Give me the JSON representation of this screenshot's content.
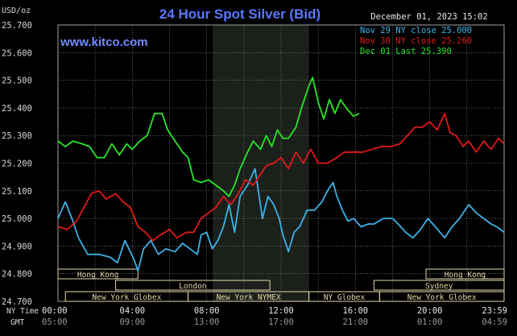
{
  "header": {
    "unit": "USD/oz",
    "title": "24 Hour Spot Silver (Bid)",
    "timestamp": "December 01, 2023 15:02",
    "brand": "www.kitco.com"
  },
  "colors": {
    "background": "#000000",
    "grid": "#a0a0a0",
    "text": "#d8d8d8",
    "title": "#5a78ff",
    "brand": "#6f8cff",
    "nov29": "#3bb3e8",
    "nov30": "#e11919",
    "dec01": "#28e628",
    "session_fill": "#1b201b",
    "market_box": "#e4d6a8"
  },
  "legend": [
    {
      "label": "Nov 29 NY close 25.000",
      "color_key": "nov29"
    },
    {
      "label": "Nov 30 NY close 25.260",
      "color_key": "nov30"
    },
    {
      "label": "Dec 01 Last 25.390",
      "color_key": "dec01"
    }
  ],
  "markets": [
    {
      "name": "Hong Kong",
      "row": 0
    },
    {
      "name": "London",
      "row": 1
    },
    {
      "name": "New York Globex",
      "row": 2
    },
    {
      "name": "New York NYMEX",
      "row": 2
    },
    {
      "name": "NY Globex",
      "row": 2
    },
    {
      "name": "Hong Kong",
      "row": 0
    },
    {
      "name": "Sydney",
      "row": 1
    },
    {
      "name": "New York Globex",
      "row": 2
    }
  ],
  "time_axis": {
    "row1_label": "NY Time",
    "row2_label": "GMT",
    "ny_ticks": [
      "00:00",
      "04:00",
      "08:00",
      "12:00",
      "16:00",
      "20:00",
      "23:59"
    ],
    "gmt_ticks": [
      "05:00",
      "09:00",
      "13:00",
      "17:00",
      "21:00",
      "01:00",
      "04:59"
    ]
  },
  "chart_data": {
    "type": "line",
    "title": "24 Hour Spot Silver (Bid)",
    "ylabel": "USD/oz",
    "ylim": [
      24.7,
      25.7
    ],
    "xlim": [
      0,
      24
    ],
    "x_unit": "hours (NY Time)",
    "y_ticks": [
      "24.700",
      "24.800",
      "24.900",
      "25.000",
      "25.100",
      "25.200",
      "25.300",
      "25.400",
      "25.500",
      "25.600",
      "25.700"
    ],
    "grid": true,
    "series": [
      {
        "name": "Nov 29 NY close 25.000",
        "color_key": "nov29",
        "points": [
          [
            0,
            25.0
          ],
          [
            0.4,
            25.06
          ],
          [
            0.8,
            24.99
          ],
          [
            1.1,
            24.93
          ],
          [
            1.6,
            24.87
          ],
          [
            2.2,
            24.87
          ],
          [
            2.8,
            24.86
          ],
          [
            3.2,
            24.84
          ],
          [
            3.6,
            24.92
          ],
          [
            4.1,
            24.85
          ],
          [
            4.3,
            24.81
          ],
          [
            4.6,
            24.89
          ],
          [
            5.0,
            24.92
          ],
          [
            5.4,
            24.87
          ],
          [
            5.8,
            24.89
          ],
          [
            6.3,
            24.88
          ],
          [
            6.7,
            24.91
          ],
          [
            7.1,
            24.89
          ],
          [
            7.5,
            24.87
          ],
          [
            7.7,
            24.94
          ],
          [
            8.0,
            24.95
          ],
          [
            8.3,
            24.89
          ],
          [
            8.6,
            24.92
          ],
          [
            8.9,
            24.97
          ],
          [
            9.2,
            25.05
          ],
          [
            9.5,
            24.95
          ],
          [
            9.8,
            25.08
          ],
          [
            10.2,
            25.12
          ],
          [
            10.6,
            25.18
          ],
          [
            11.0,
            25.0
          ],
          [
            11.3,
            25.08
          ],
          [
            11.6,
            25.05
          ],
          [
            11.9,
            25.0
          ],
          [
            12.1,
            24.94
          ],
          [
            12.4,
            24.88
          ],
          [
            12.7,
            24.95
          ],
          [
            13.0,
            24.97
          ],
          [
            13.4,
            25.03
          ],
          [
            13.8,
            25.03
          ],
          [
            14.2,
            25.06
          ],
          [
            14.5,
            25.1
          ],
          [
            14.8,
            25.13
          ],
          [
            15.0,
            25.08
          ],
          [
            15.3,
            25.03
          ],
          [
            15.6,
            24.99
          ],
          [
            15.9,
            25.0
          ],
          [
            16.3,
            24.97
          ],
          [
            16.7,
            24.98
          ],
          [
            17.0,
            24.98
          ],
          [
            17.5,
            25.0
          ],
          [
            18.0,
            25.0
          ],
          [
            18.3,
            24.98
          ],
          [
            18.7,
            24.95
          ],
          [
            19.1,
            24.93
          ],
          [
            19.5,
            24.96
          ],
          [
            19.9,
            25.0
          ],
          [
            20.3,
            24.97
          ],
          [
            20.8,
            24.93
          ],
          [
            21.2,
            24.97
          ],
          [
            21.6,
            25.0
          ],
          [
            22.1,
            25.05
          ],
          [
            22.5,
            25.02
          ],
          [
            22.9,
            25.0
          ],
          [
            23.3,
            24.98
          ],
          [
            23.6,
            24.97
          ],
          [
            24.0,
            24.95
          ]
        ]
      },
      {
        "name": "Nov 30 NY close 25.260",
        "color_key": "nov30",
        "points": [
          [
            0,
            24.97
          ],
          [
            0.5,
            24.96
          ],
          [
            1.0,
            24.99
          ],
          [
            1.4,
            25.04
          ],
          [
            1.8,
            25.09
          ],
          [
            2.2,
            25.1
          ],
          [
            2.6,
            25.07
          ],
          [
            3.1,
            25.09
          ],
          [
            3.5,
            25.06
          ],
          [
            3.9,
            25.04
          ],
          [
            4.3,
            24.97
          ],
          [
            4.7,
            24.95
          ],
          [
            5.1,
            24.92
          ],
          [
            5.5,
            24.94
          ],
          [
            6.0,
            24.96
          ],
          [
            6.4,
            24.93
          ],
          [
            6.9,
            24.95
          ],
          [
            7.3,
            24.95
          ],
          [
            7.7,
            25.0
          ],
          [
            8.1,
            25.02
          ],
          [
            8.5,
            25.04
          ],
          [
            8.9,
            25.08
          ],
          [
            9.3,
            25.05
          ],
          [
            9.7,
            25.09
          ],
          [
            10.1,
            25.14
          ],
          [
            10.5,
            25.12
          ],
          [
            10.8,
            25.15
          ],
          [
            11.2,
            25.19
          ],
          [
            11.6,
            25.2
          ],
          [
            12.0,
            25.22
          ],
          [
            12.4,
            25.18
          ],
          [
            12.8,
            25.24
          ],
          [
            13.2,
            25.2
          ],
          [
            13.6,
            25.25
          ],
          [
            14.0,
            25.2
          ],
          [
            14.5,
            25.2
          ],
          [
            15.0,
            25.22
          ],
          [
            15.4,
            25.24
          ],
          [
            15.9,
            25.24
          ],
          [
            16.4,
            25.24
          ],
          [
            16.9,
            25.25
          ],
          [
            17.4,
            25.26
          ],
          [
            17.9,
            25.26
          ],
          [
            18.4,
            25.27
          ],
          [
            18.8,
            25.3
          ],
          [
            19.2,
            25.33
          ],
          [
            19.6,
            25.33
          ],
          [
            20.0,
            25.35
          ],
          [
            20.4,
            25.32
          ],
          [
            20.8,
            25.38
          ],
          [
            21.1,
            25.31
          ],
          [
            21.4,
            25.3
          ],
          [
            21.8,
            25.26
          ],
          [
            22.1,
            25.28
          ],
          [
            22.5,
            25.24
          ],
          [
            22.9,
            25.28
          ],
          [
            23.3,
            25.25
          ],
          [
            23.7,
            25.29
          ],
          [
            24.0,
            25.27
          ]
        ]
      },
      {
        "name": "Dec 01 Last 25.390",
        "color_key": "dec01",
        "points": [
          [
            0,
            25.28
          ],
          [
            0.4,
            25.26
          ],
          [
            0.8,
            25.28
          ],
          [
            1.3,
            25.27
          ],
          [
            1.7,
            25.26
          ],
          [
            2.1,
            25.22
          ],
          [
            2.5,
            25.22
          ],
          [
            2.9,
            25.27
          ],
          [
            3.3,
            25.23
          ],
          [
            3.7,
            25.27
          ],
          [
            4.0,
            25.25
          ],
          [
            4.4,
            25.28
          ],
          [
            4.8,
            25.3
          ],
          [
            5.2,
            25.38
          ],
          [
            5.6,
            25.38
          ],
          [
            5.9,
            25.32
          ],
          [
            6.3,
            25.28
          ],
          [
            6.7,
            25.24
          ],
          [
            7.0,
            25.22
          ],
          [
            7.3,
            25.14
          ],
          [
            7.7,
            25.13
          ],
          [
            8.1,
            25.14
          ],
          [
            8.5,
            25.12
          ],
          [
            8.9,
            25.1
          ],
          [
            9.2,
            25.08
          ],
          [
            9.5,
            25.12
          ],
          [
            9.8,
            25.18
          ],
          [
            10.2,
            25.24
          ],
          [
            10.5,
            25.28
          ],
          [
            10.9,
            25.25
          ],
          [
            11.2,
            25.3
          ],
          [
            11.5,
            25.26
          ],
          [
            11.8,
            25.32
          ],
          [
            12.1,
            25.29
          ],
          [
            12.4,
            25.29
          ],
          [
            12.8,
            25.33
          ],
          [
            13.1,
            25.4
          ],
          [
            13.5,
            25.48
          ],
          [
            13.7,
            25.51
          ],
          [
            14.0,
            25.42
          ],
          [
            14.3,
            25.36
          ],
          [
            14.6,
            25.43
          ],
          [
            14.9,
            25.38
          ],
          [
            15.2,
            25.43
          ],
          [
            15.5,
            25.4
          ],
          [
            15.9,
            25.37
          ],
          [
            16.2,
            25.38
          ]
        ]
      }
    ]
  }
}
